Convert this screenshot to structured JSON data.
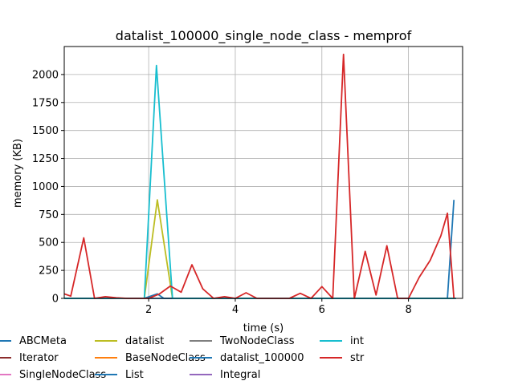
{
  "chart_data": {
    "type": "line",
    "title": "datalist_100000_single_node_class - memprof",
    "xlabel": "time (s)",
    "ylabel": "memory (KB)",
    "xlim": [
      0.05,
      9.25
    ],
    "ylim": [
      0,
      2250
    ],
    "xticks": [
      2,
      4,
      6,
      8
    ],
    "yticks": [
      0,
      250,
      500,
      750,
      1000,
      1250,
      1500,
      1750,
      2000
    ],
    "grid": true,
    "legend_position": "bottom",
    "series": [
      {
        "name": "ABCMeta",
        "color": "#1f77b4",
        "x": [],
        "y": []
      },
      {
        "name": "Iterator",
        "color": "#8c2d2d",
        "x": [],
        "y": []
      },
      {
        "name": "SingleNodeClass",
        "color": "#e377c2",
        "x": [],
        "y": []
      },
      {
        "name": "datalist",
        "color": "#bcbd22",
        "x": [
          0.05,
          1.9,
          2.2,
          2.55,
          9.1
        ],
        "y": [
          0,
          0,
          880,
          0,
          0
        ]
      },
      {
        "name": "BaseNodeClass",
        "color": "#ff7f0e",
        "x": [],
        "y": []
      },
      {
        "name": "List",
        "color": "#1f77b4",
        "x": [
          0.05,
          1.9,
          2.2,
          2.35,
          8.9,
          9.05
        ],
        "y": [
          0,
          0,
          40,
          0,
          0,
          880
        ]
      },
      {
        "name": "TwoNodeClass",
        "color": "#7f7f7f",
        "x": [],
        "y": []
      },
      {
        "name": "datalist_100000",
        "color": "#1f77b4",
        "x": [
          0.05,
          9.1
        ],
        "y": [
          0,
          0
        ]
      },
      {
        "name": "Integral",
        "color": "#9467bd",
        "x": [],
        "y": []
      },
      {
        "name": "int",
        "color": "#17becf",
        "x": [
          0.05,
          1.9,
          2.18,
          2.55,
          9.1
        ],
        "y": [
          0,
          0,
          2080,
          0,
          0
        ]
      },
      {
        "name": "str",
        "color": "#d62728",
        "x": [
          0.05,
          0.2,
          0.5,
          0.75,
          1.0,
          1.25,
          1.5,
          1.75,
          2.0,
          2.25,
          2.5,
          2.75,
          3.0,
          3.25,
          3.5,
          3.75,
          4.0,
          4.25,
          4.5,
          4.75,
          5.0,
          5.25,
          5.5,
          5.75,
          6.0,
          6.25,
          6.5,
          6.75,
          7.0,
          7.25,
          7.5,
          7.75,
          8.0,
          8.25,
          8.5,
          8.75,
          8.9,
          9.05
        ],
        "y": [
          40,
          20,
          540,
          0,
          15,
          5,
          0,
          0,
          0,
          40,
          110,
          55,
          300,
          85,
          0,
          15,
          0,
          50,
          0,
          0,
          0,
          0,
          45,
          0,
          105,
          0,
          2180,
          0,
          420,
          30,
          470,
          0,
          0,
          190,
          340,
          560,
          760,
          0
        ]
      }
    ]
  }
}
